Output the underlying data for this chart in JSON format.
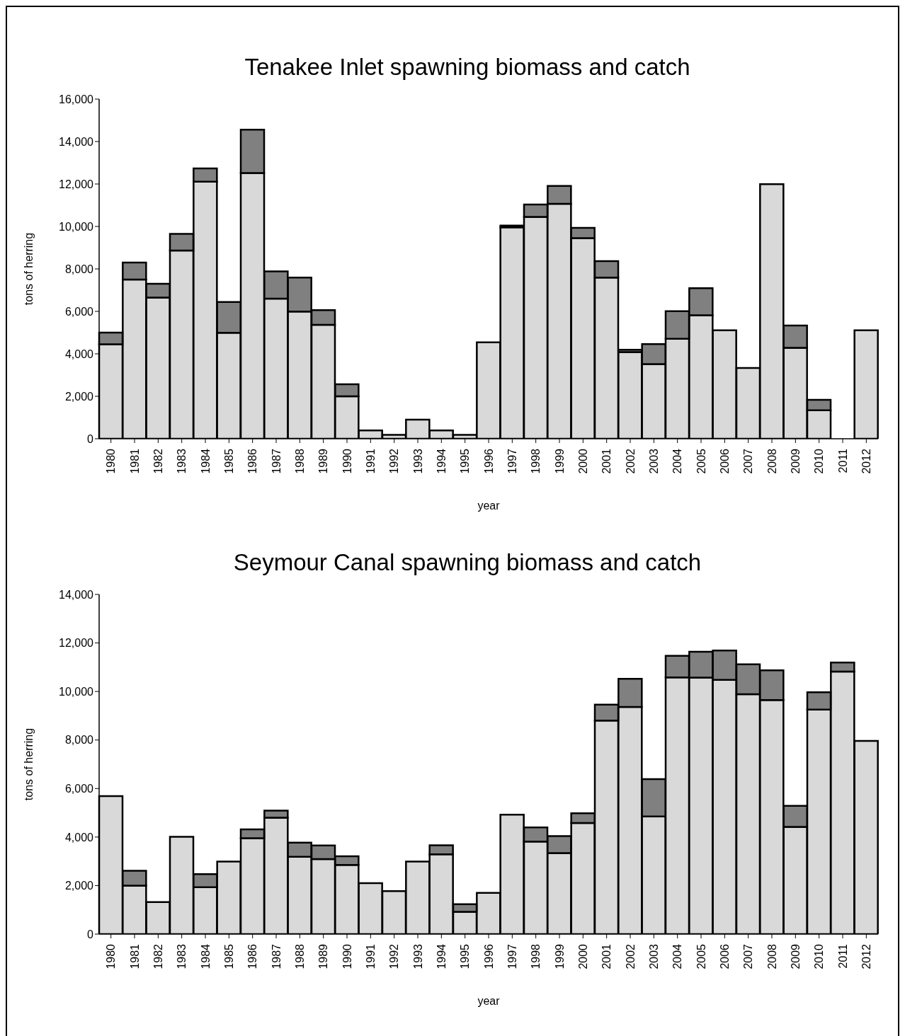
{
  "chart_data": [
    {
      "type": "bar",
      "title": "Tenakee Inlet spawning biomass and catch",
      "xlabel": "year",
      "ylabel": "tons of herring",
      "stacked": true,
      "grid": false,
      "legend": false,
      "categories": [
        "1980",
        "1981",
        "1982",
        "1983",
        "1984",
        "1985",
        "1986",
        "1987",
        "1988",
        "1989",
        "1990",
        "1991",
        "1992",
        "1993",
        "1994",
        "1995",
        "1996",
        "1997",
        "1998",
        "1999",
        "2000",
        "2001",
        "2002",
        "2003",
        "2004",
        "2005",
        "2006",
        "2007",
        "2008",
        "2009",
        "2010",
        "2011",
        "2012"
      ],
      "series": [
        {
          "color": "#d9d9d9",
          "values": [
            4450,
            7500,
            6650,
            8870,
            12110,
            4990,
            12520,
            6600,
            5990,
            5370,
            2000,
            390,
            180,
            900,
            390,
            180,
            4540,
            9960,
            10450,
            11070,
            9450,
            7590,
            4080,
            3520,
            4710,
            5820,
            5110,
            3330,
            11990,
            4280,
            1340,
            0,
            5110
          ]
        },
        {
          "color": "#808080",
          "values": [
            550,
            800,
            650,
            780,
            620,
            1450,
            2040,
            1280,
            1600,
            690,
            570,
            null,
            null,
            null,
            null,
            null,
            null,
            80,
            580,
            840,
            480,
            780,
            110,
            940,
            1300,
            1270,
            null,
            null,
            null,
            1050,
            490,
            null,
            null
          ]
        }
      ],
      "ylim": [
        0,
        16000
      ],
      "yticks": [
        {
          "value": 0,
          "label": "0"
        },
        {
          "value": 2000,
          "label": "2,000"
        },
        {
          "value": 4000,
          "label": "4,000"
        },
        {
          "value": 6000,
          "label": "6,000"
        },
        {
          "value": 8000,
          "label": "8,000"
        },
        {
          "value": 10000,
          "label": "10,000"
        },
        {
          "value": 12000,
          "label": "12,000"
        },
        {
          "value": 14000,
          "label": "14,000"
        },
        {
          "value": 16000,
          "label": "16,000"
        }
      ]
    },
    {
      "type": "bar",
      "title": "Seymour Canal spawning biomass and catch",
      "xlabel": "year",
      "ylabel": "tons of herring",
      "stacked": true,
      "grid": false,
      "legend": false,
      "categories": [
        "1980",
        "1981",
        "1982",
        "1983",
        "1984",
        "1985",
        "1986",
        "1987",
        "1988",
        "1989",
        "1990",
        "1991",
        "1992",
        "1993",
        "1994",
        "1995",
        "1996",
        "1997",
        "1998",
        "1999",
        "2000",
        "2001",
        "2002",
        "2003",
        "2004",
        "2005",
        "2006",
        "2007",
        "2008",
        "2009",
        "2010",
        "2011",
        "2012"
      ],
      "series": [
        {
          "color": "#d9d9d9",
          "values": [
            5690,
            2000,
            1320,
            4010,
            1930,
            2990,
            3950,
            4800,
            3190,
            3090,
            2850,
            2100,
            1770,
            2990,
            3290,
            920,
            1700,
            4920,
            3810,
            3340,
            4580,
            8800,
            9360,
            4850,
            10580,
            10570,
            10480,
            9890,
            9650,
            4420,
            9250,
            10820,
            7960
          ]
        },
        {
          "color": "#808080",
          "values": [
            null,
            610,
            null,
            null,
            540,
            null,
            370,
            290,
            580,
            560,
            360,
            null,
            null,
            null,
            370,
            310,
            null,
            null,
            590,
            700,
            400,
            660,
            1160,
            1540,
            890,
            1070,
            1210,
            1230,
            1220,
            870,
            720,
            370,
            null
          ]
        }
      ],
      "ylim": [
        0,
        14000
      ],
      "yticks": [
        {
          "value": 0,
          "label": "0"
        },
        {
          "value": 2000,
          "label": "2,000"
        },
        {
          "value": 4000,
          "label": "4,000"
        },
        {
          "value": 6000,
          "label": "6,000"
        },
        {
          "value": 8000,
          "label": "8,000"
        },
        {
          "value": 10000,
          "label": "10,000"
        },
        {
          "value": 12000,
          "label": "12,000"
        },
        {
          "value": 14000,
          "label": "14,000"
        }
      ]
    }
  ]
}
